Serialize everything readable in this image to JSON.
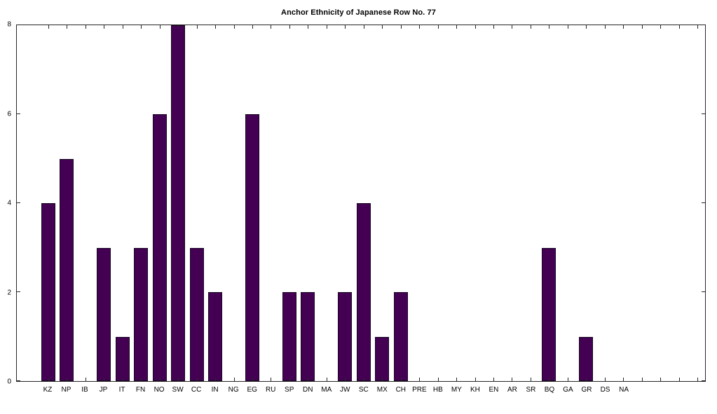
{
  "chart_data": {
    "type": "bar",
    "title": "Anchor Ethnicity of Japanese Row No. 77",
    "categories": [
      "KZ",
      "NP",
      "IB",
      "JP",
      "IT",
      "FN",
      "NO",
      "SW",
      "CC",
      "IN",
      "NG",
      "EG",
      "RU",
      "SP",
      "DN",
      "MA",
      "JW",
      "SC",
      "MX",
      "CH",
      "PRE",
      "HB",
      "MY",
      "KH",
      "EN",
      "AR",
      "SR",
      "BQ",
      "GA",
      "GR",
      "DS",
      "NA"
    ],
    "values": [
      4,
      5,
      0,
      3,
      1,
      3,
      6,
      8,
      3,
      2,
      0,
      6,
      0,
      2,
      2,
      0,
      2,
      4,
      1,
      2,
      0,
      0,
      0,
      0,
      0,
      0,
      0,
      3,
      0,
      1,
      0,
      0
    ],
    "xlabel": "",
    "ylabel": "",
    "ylim": [
      0,
      8
    ],
    "yticks": [
      0,
      2,
      4,
      6,
      8
    ],
    "grid": false,
    "legend": null,
    "bar_color": "#440154",
    "bar_edge_color": "#160620",
    "axis_color": "#262626",
    "background_color": "#ffffff"
  }
}
